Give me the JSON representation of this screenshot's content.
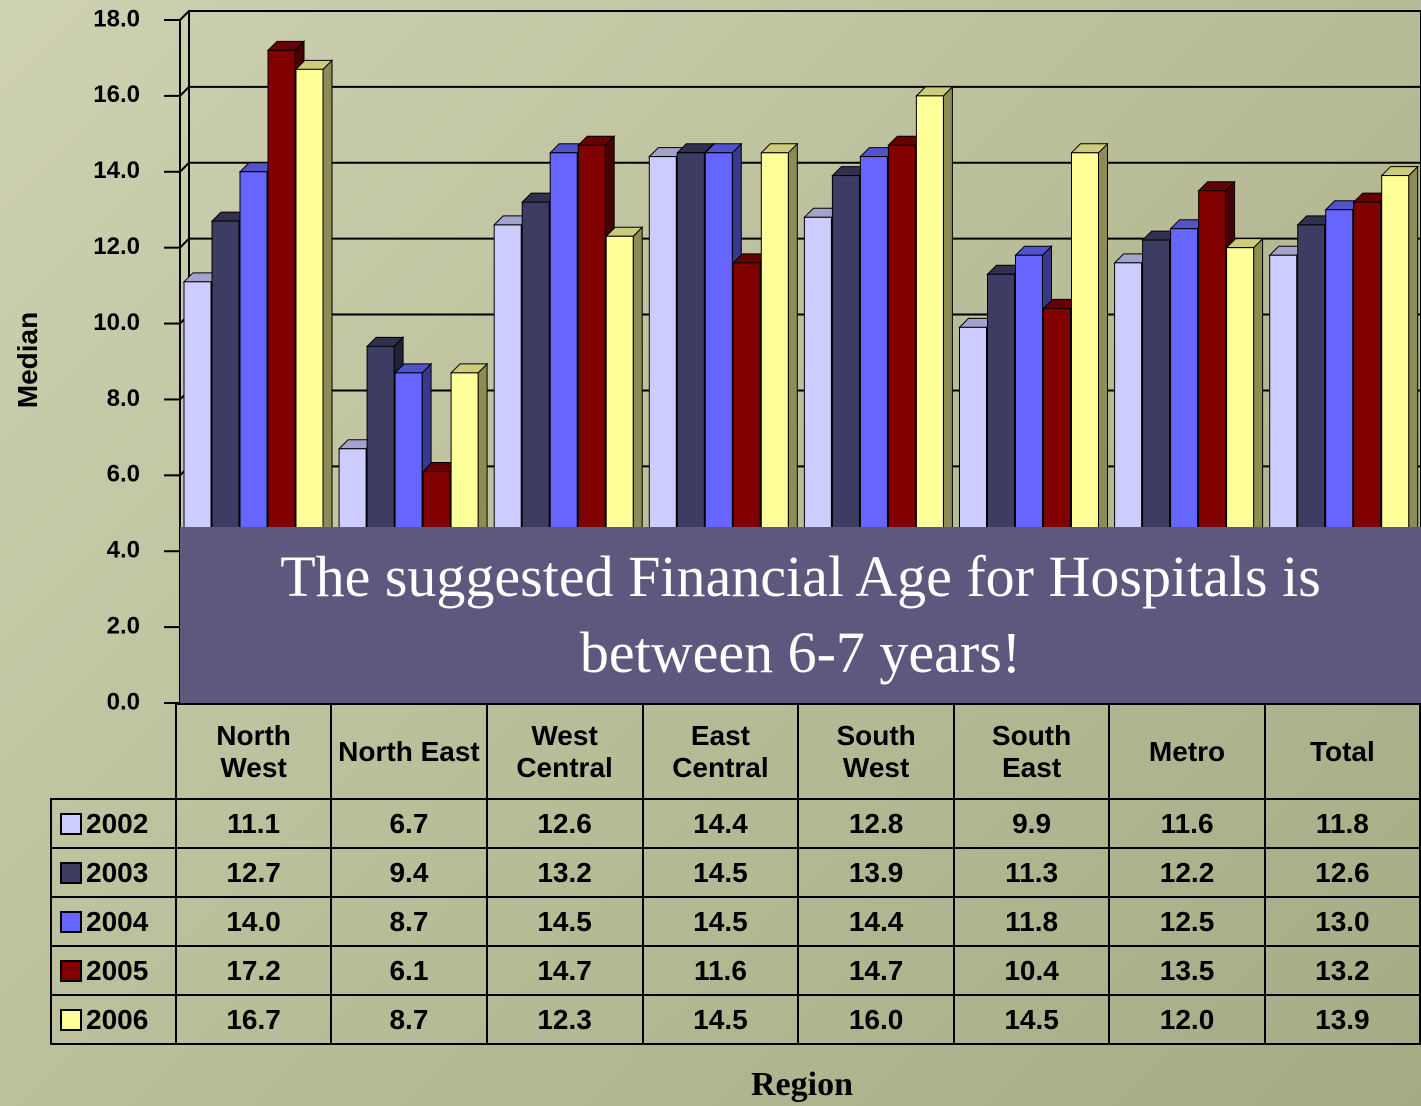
{
  "chart_data": {
    "type": "bar3d",
    "ylabel": "Median",
    "xlabel": "Region",
    "annotation": "The suggested Financial Age for Hospitals is between 6-7 years!",
    "categories": [
      "North West",
      "North East",
      "West Central",
      "East Central",
      "South West",
      "South East",
      "Metro",
      "Total"
    ],
    "series": [
      {
        "name": "2002",
        "color": "#ccccff",
        "values": [
          11.1,
          6.7,
          12.6,
          14.4,
          12.8,
          9.9,
          11.6,
          11.8
        ],
        "value_labels": [
          "11.1",
          "6.7",
          "12.6",
          "14.4",
          "12.8",
          "9.9",
          "11.6",
          "11.8"
        ]
      },
      {
        "name": "2003",
        "color": "#3d3d63",
        "values": [
          12.7,
          9.4,
          13.2,
          14.5,
          13.9,
          11.3,
          12.2,
          12.6
        ],
        "value_labels": [
          "12.7",
          "9.4",
          "13.2",
          "14.5",
          "13.9",
          "11.3",
          "12.2",
          "12.6"
        ]
      },
      {
        "name": "2004",
        "color": "#6666ff",
        "values": [
          14.0,
          8.7,
          14.5,
          14.5,
          14.4,
          11.8,
          12.5,
          13.0
        ],
        "value_labels": [
          "14.0",
          "8.7",
          "14.5",
          "14.5",
          "14.4",
          "11.8",
          "12.5",
          "13.0"
        ]
      },
      {
        "name": "2005",
        "color": "#800000",
        "values": [
          17.2,
          6.1,
          14.7,
          11.6,
          14.7,
          10.4,
          13.5,
          13.2
        ],
        "value_labels": [
          "17.2",
          "6.1",
          "14.7",
          "11.6",
          "14.7",
          "10.4",
          "13.5",
          "13.2"
        ]
      },
      {
        "name": "2006",
        "color": "#ffff99",
        "values": [
          16.7,
          8.7,
          12.3,
          14.5,
          16.0,
          14.5,
          12.0,
          13.9
        ],
        "value_labels": [
          "16.7",
          "8.7",
          "12.3",
          "14.5",
          "16.0",
          "14.5",
          "12.0",
          "13.9"
        ]
      }
    ],
    "ylim": [
      0,
      18
    ],
    "yticks": [
      {
        "value": 0,
        "label": "0.0"
      },
      {
        "value": 2,
        "label": "2.0"
      },
      {
        "value": 4,
        "label": "4.0"
      },
      {
        "value": 6,
        "label": "6.0"
      },
      {
        "value": 8,
        "label": "8.0"
      },
      {
        "value": 10,
        "label": "10.0"
      },
      {
        "value": 12,
        "label": "12.0"
      },
      {
        "value": 14,
        "label": "14.0"
      },
      {
        "value": 16,
        "label": "16.0"
      },
      {
        "value": 18,
        "label": "18.0"
      }
    ],
    "grid": true
  }
}
